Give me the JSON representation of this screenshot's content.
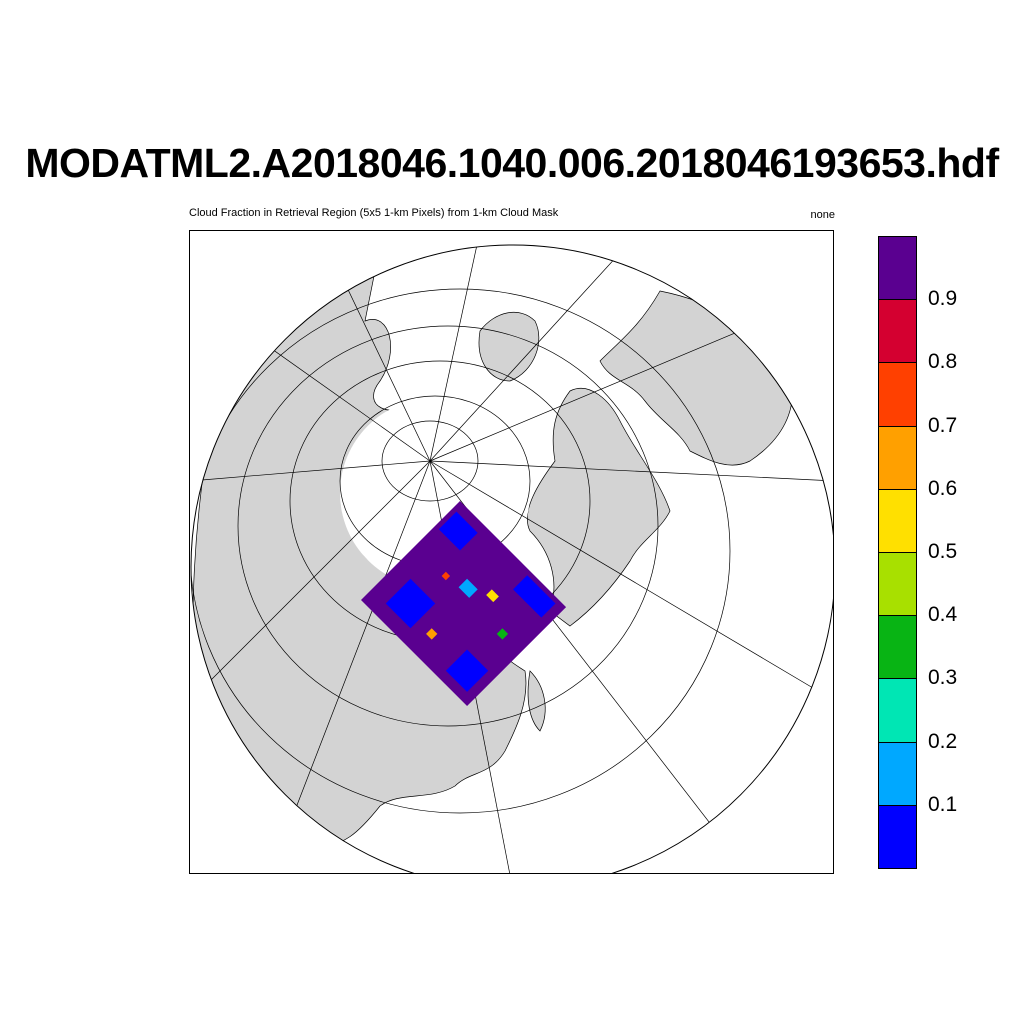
{
  "title": "MODATML2.A2018046.1040.006.2018046193653.hdf",
  "subtitle": "Cloud Fraction in Retrieval Region (5x5 1-km Pixels) from 1-km Cloud Mask",
  "units": "none",
  "map": {
    "projection": "orthographic, north-polar view",
    "land_color": "#d3d3d3",
    "ocean_color": "#ffffff",
    "graticule_color": "#000000"
  },
  "colorbar": {
    "colors": [
      "#0000ff",
      "#00a8ff",
      "#00e6b4",
      "#08b414",
      "#a8e000",
      "#ffe000",
      "#ffa000",
      "#ff4000",
      "#d40030",
      "#5a0090"
    ],
    "labels": [
      "0.1",
      "0.2",
      "0.3",
      "0.4",
      "0.5",
      "0.6",
      "0.7",
      "0.8",
      "0.9"
    ]
  }
}
